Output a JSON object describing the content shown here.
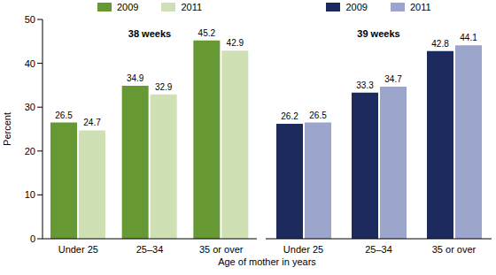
{
  "chart_data": [
    {
      "type": "bar",
      "title": "38 weeks",
      "y_label": "Percent",
      "x_label": "Age of mother in years",
      "categories": [
        "Under 25",
        "25–34",
        "35 or over"
      ],
      "series": [
        {
          "name": "2009",
          "color": "#669933",
          "values": [
            26.5,
            34.9,
            45.2
          ]
        },
        {
          "name": "2011",
          "color": "#cfe0b4",
          "values": [
            24.7,
            32.9,
            42.9
          ]
        }
      ],
      "ylim": [
        0,
        50
      ],
      "yticks": [
        0,
        10,
        20,
        30,
        40,
        50
      ],
      "data_labels": true,
      "legend": "top"
    },
    {
      "type": "bar",
      "title": "39 weeks",
      "categories": [
        "Under 25",
        "25–34",
        "35 or over"
      ],
      "series": [
        {
          "name": "2009",
          "color": "#1c2a5e",
          "values": [
            26.2,
            33.3,
            42.8
          ]
        },
        {
          "name": "2011",
          "color": "#9ca5cb",
          "values": [
            26.5,
            34.7,
            44.1
          ]
        }
      ],
      "ylim": [
        0,
        50
      ],
      "yticks": [
        0,
        10,
        20,
        30,
        40,
        50
      ],
      "data_labels": true,
      "legend": "top"
    }
  ]
}
